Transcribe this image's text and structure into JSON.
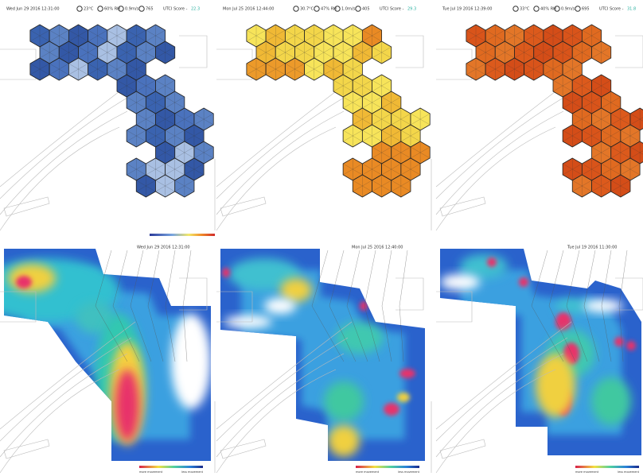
{
  "top_panels": [
    {
      "datetime": "Wed Jun 29 2016 12:31:00",
      "conditions": [
        "23°C",
        "60% RH",
        "0.9m/s",
        "765"
      ],
      "score_label": "UTCI Score -",
      "score": "22.3"
    },
    {
      "datetime": "Mon Jul 25 2016 12:44:00",
      "conditions": [
        "30.7°C",
        "47% RH",
        "1.0m/s",
        "405"
      ],
      "score_label": "UTCI Score -",
      "score": "29.3"
    },
    {
      "datetime": "Tue Jul 19 2016 12:39:00",
      "conditions": [
        "33°C",
        "40% RH",
        "0.9m/s",
        "695"
      ],
      "score_label": "UTCI Score -",
      "score": "31.8"
    }
  ],
  "bottom_panels": [
    {
      "datetime": "Wed Jun 29 2016 12:31:00",
      "legend": [
        "more movement",
        "less movement"
      ]
    },
    {
      "datetime": "Mon Jul 25 2016 12:40:00",
      "legend": [
        "more movement",
        "less movement"
      ]
    },
    {
      "datetime": "Tue Jul 19 2016 11:30:00",
      "legend": [
        "more movement",
        "less movement"
      ]
    }
  ]
}
